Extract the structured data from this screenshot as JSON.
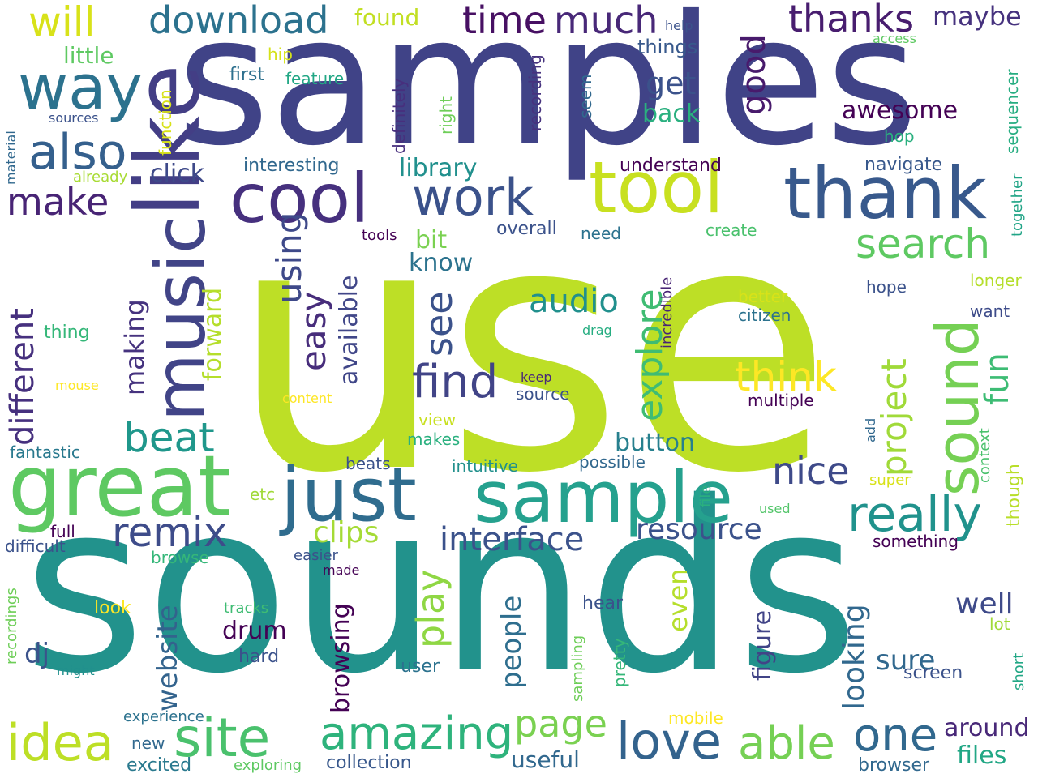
{
  "words": [
    {
      "text": "use",
      "color": "#bddf26"
    },
    {
      "text": "sounds",
      "color": "#22928c"
    },
    {
      "text": "samples",
      "color": "#404387"
    },
    {
      "text": "like",
      "color": "#433e85"
    },
    {
      "text": "music",
      "color": "#414487"
    },
    {
      "text": "great",
      "color": "#5ec962"
    },
    {
      "text": "just",
      "color": "#2f6c8e"
    },
    {
      "text": "sample",
      "color": "#25a18e"
    },
    {
      "text": "cool",
      "color": "#46307e"
    },
    {
      "text": "thank",
      "color": "#38598c"
    },
    {
      "text": "tool",
      "color": "#c8e020"
    },
    {
      "text": "sound",
      "color": "#75d054"
    },
    {
      "text": "way",
      "color": "#2c728e"
    },
    {
      "text": "work",
      "color": "#3b528b"
    },
    {
      "text": "also",
      "color": "#35608d"
    },
    {
      "text": "site",
      "color": "#4ac16d"
    },
    {
      "text": "amazing",
      "color": "#2eb37c"
    },
    {
      "text": "idea",
      "color": "#bddf26"
    },
    {
      "text": "love",
      "color": "#33638d"
    },
    {
      "text": "able",
      "color": "#75d054"
    },
    {
      "text": "one",
      "color": "#31688e"
    },
    {
      "text": "really",
      "color": "#20928c"
    },
    {
      "text": "search",
      "color": "#5ec962"
    },
    {
      "text": "find",
      "color": "#414487"
    },
    {
      "text": "nice",
      "color": "#3e4a89"
    },
    {
      "text": "explore",
      "color": "#3fbc73"
    },
    {
      "text": "project",
      "color": "#a0da39"
    },
    {
      "text": "remix",
      "color": "#3e4c8a"
    },
    {
      "text": "beat",
      "color": "#1f978b"
    },
    {
      "text": "different",
      "color": "#46307e"
    },
    {
      "text": "make",
      "color": "#482475"
    },
    {
      "text": "download",
      "color": "#2c728e"
    },
    {
      "text": "time",
      "color": "#471063"
    },
    {
      "text": "much",
      "color": "#482878"
    },
    {
      "text": "thanks",
      "color": "#481d6f"
    },
    {
      "text": "will",
      "color": "#d8e219"
    },
    {
      "text": "maybe",
      "color": "#46327e"
    },
    {
      "text": "good",
      "color": "#481a6c"
    },
    {
      "text": "get",
      "color": "#3b528b"
    },
    {
      "text": "think",
      "color": "#fde725"
    },
    {
      "text": "fun",
      "color": "#3dbc74"
    },
    {
      "text": "using",
      "color": "#3e4989"
    },
    {
      "text": "easy",
      "color": "#472d7b"
    },
    {
      "text": "see",
      "color": "#3b528b"
    },
    {
      "text": "page",
      "color": "#7ad151"
    },
    {
      "text": "play",
      "color": "#8fd744"
    },
    {
      "text": "interface",
      "color": "#3b528b"
    },
    {
      "text": "resource",
      "color": "#3b528b"
    },
    {
      "text": "clips",
      "color": "#a5db36"
    },
    {
      "text": "audio",
      "color": "#21908d"
    },
    {
      "text": "awesome",
      "color": "#440154"
    },
    {
      "text": "back",
      "color": "#2ab07f"
    },
    {
      "text": "library",
      "color": "#21908d"
    },
    {
      "text": "bit",
      "color": "#7ad151"
    },
    {
      "text": "know",
      "color": "#2c738e"
    },
    {
      "text": "button",
      "color": "#27808e"
    },
    {
      "text": "making",
      "color": "#46337f"
    },
    {
      "text": "forward",
      "color": "#b5de2b"
    },
    {
      "text": "available",
      "color": "#404688"
    },
    {
      "text": "click",
      "color": "#3e4989"
    },
    {
      "text": "interesting",
      "color": "#31688e"
    },
    {
      "text": "understand",
      "color": "#440154"
    },
    {
      "text": "navigate",
      "color": "#38588c"
    },
    {
      "text": "little",
      "color": "#5ec962"
    },
    {
      "text": "found",
      "color": "#c2df23"
    },
    {
      "text": "things",
      "color": "#38598c"
    },
    {
      "text": "first",
      "color": "#2d708e"
    },
    {
      "text": "feature",
      "color": "#22a785"
    },
    {
      "text": "hip",
      "color": "#d5e21a"
    },
    {
      "text": "help",
      "color": "#3b528b"
    },
    {
      "text": "access",
      "color": "#5ec962"
    },
    {
      "text": "sequencer",
      "color": "#26ad81"
    },
    {
      "text": "hop",
      "color": "#2ab07f"
    },
    {
      "text": "recording",
      "color": "#46327e"
    },
    {
      "text": "definitely",
      "color": "#472f7d"
    },
    {
      "text": "seem",
      "color": "#31688e"
    },
    {
      "text": "right",
      "color": "#6ece58"
    },
    {
      "text": "function",
      "color": "#d8e219"
    },
    {
      "text": "sources",
      "color": "#3b528b"
    },
    {
      "text": "material",
      "color": "#31688e"
    },
    {
      "text": "already",
      "color": "#a8db34"
    },
    {
      "text": "together",
      "color": "#20a486"
    },
    {
      "text": "create",
      "color": "#4ac16d"
    },
    {
      "text": "tools",
      "color": "#440154"
    },
    {
      "text": "overall",
      "color": "#3b528b"
    },
    {
      "text": "need",
      "color": "#2c728e"
    },
    {
      "text": "incredible",
      "color": "#482475"
    },
    {
      "text": "longer",
      "color": "#b5de2b"
    },
    {
      "text": "hope",
      "color": "#3b528b"
    },
    {
      "text": "better",
      "color": "#d8e219"
    },
    {
      "text": "citizen",
      "color": "#2c728e"
    },
    {
      "text": "want",
      "color": "#3e4c8a"
    },
    {
      "text": "drag",
      "color": "#26ad81"
    },
    {
      "text": "thing",
      "color": "#35b779"
    },
    {
      "text": "mouse",
      "color": "#fde725"
    },
    {
      "text": "keep",
      "color": "#482878"
    },
    {
      "text": "source",
      "color": "#3b528b"
    },
    {
      "text": "multiple",
      "color": "#440154"
    },
    {
      "text": "content",
      "color": "#fde725"
    },
    {
      "text": "view",
      "color": "#c8e020"
    },
    {
      "text": "makes",
      "color": "#2ab07f"
    },
    {
      "text": "context",
      "color": "#4ac16d"
    },
    {
      "text": "though",
      "color": "#b8de29"
    },
    {
      "text": "add",
      "color": "#31688e"
    },
    {
      "text": "super",
      "color": "#d8e219"
    },
    {
      "text": "fantastic",
      "color": "#29798e"
    },
    {
      "text": "beats",
      "color": "#3b528b"
    },
    {
      "text": "intuitive",
      "color": "#22908c"
    },
    {
      "text": "possible",
      "color": "#31688e"
    },
    {
      "text": "file",
      "color": "#2ab07f"
    },
    {
      "text": "used",
      "color": "#52c569"
    },
    {
      "text": "etc",
      "color": "#a0da39"
    },
    {
      "text": "full",
      "color": "#440154"
    },
    {
      "text": "difficult",
      "color": "#3b528b"
    },
    {
      "text": "something",
      "color": "#440154"
    },
    {
      "text": "browse",
      "color": "#35b779"
    },
    {
      "text": "easier",
      "color": "#3b528b"
    },
    {
      "text": "made",
      "color": "#440154"
    },
    {
      "text": "recordings",
      "color": "#6ece58"
    },
    {
      "text": "website",
      "color": "#33638d"
    },
    {
      "text": "drum",
      "color": "#440154"
    },
    {
      "text": "dj",
      "color": "#3b528b"
    },
    {
      "text": "look",
      "color": "#fde725"
    },
    {
      "text": "tracks",
      "color": "#3fbc73"
    },
    {
      "text": "hard",
      "color": "#3b528b"
    },
    {
      "text": "might",
      "color": "#21908d"
    },
    {
      "text": "people",
      "color": "#2e6e8e"
    },
    {
      "text": "browsing",
      "color": "#440154"
    },
    {
      "text": "even",
      "color": "#b5de2b"
    },
    {
      "text": "looking",
      "color": "#31688e"
    },
    {
      "text": "figure",
      "color": "#414487"
    },
    {
      "text": "sampling",
      "color": "#6ece58"
    },
    {
      "text": "pretty",
      "color": "#35b779"
    },
    {
      "text": "hear",
      "color": "#3b528b"
    },
    {
      "text": "user",
      "color": "#2c728e"
    },
    {
      "text": "well",
      "color": "#3e4a89"
    },
    {
      "text": "sure",
      "color": "#31688e"
    },
    {
      "text": "lot",
      "color": "#a0da39"
    },
    {
      "text": "screen",
      "color": "#3b528b"
    },
    {
      "text": "short",
      "color": "#22a785"
    },
    {
      "text": "experience",
      "color": "#2c728e"
    },
    {
      "text": "new",
      "color": "#31688e"
    },
    {
      "text": "excited",
      "color": "#29798e"
    },
    {
      "text": "exploring",
      "color": "#5ec962"
    },
    {
      "text": "collection",
      "color": "#38588c"
    },
    {
      "text": "useful",
      "color": "#31688e"
    },
    {
      "text": "mobile",
      "color": "#fde725"
    },
    {
      "text": "around",
      "color": "#482878"
    },
    {
      "text": "files",
      "color": "#22a785"
    },
    {
      "text": "browser",
      "color": "#31688e"
    }
  ]
}
